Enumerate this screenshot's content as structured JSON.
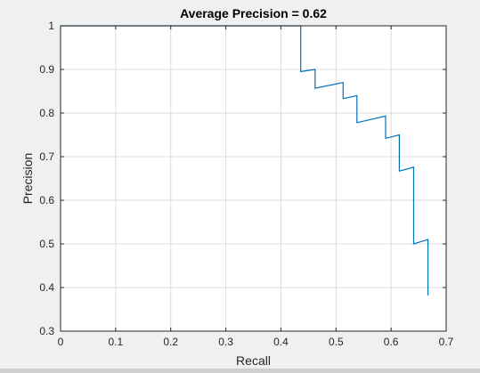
{
  "chart_data": {
    "type": "line",
    "title": "Average Precision = 0.62",
    "xlabel": "Recall",
    "ylabel": "Precision",
    "xlim": [
      0,
      0.7
    ],
    "ylim": [
      0.3,
      1.0
    ],
    "xticks": [
      0,
      0.1,
      0.2,
      0.3,
      0.4,
      0.5,
      0.6,
      0.7
    ],
    "xtick_labels": [
      "0",
      "0.1",
      "0.2",
      "0.3",
      "0.4",
      "0.5",
      "0.6",
      "0.7"
    ],
    "yticks": [
      0.3,
      0.4,
      0.5,
      0.6,
      0.7,
      0.8,
      0.9,
      1.0
    ],
    "ytick_labels": [
      "0.3",
      "0.4",
      "0.5",
      "0.6",
      "0.7",
      "0.8",
      "0.9",
      "1"
    ],
    "grid": true,
    "line_color": "#0072bd",
    "series": [
      {
        "x": [
          0,
          0.436,
          0.436,
          0.462,
          0.462,
          0.513,
          0.513,
          0.538,
          0.538,
          0.59,
          0.59,
          0.615,
          0.615,
          0.641,
          0.641,
          0.667,
          0.667
        ],
        "y": [
          1.0,
          1.0,
          0.895,
          0.9,
          0.857,
          0.87,
          0.833,
          0.84,
          0.778,
          0.793,
          0.742,
          0.75,
          0.667,
          0.676,
          0.5,
          0.51,
          0.382
        ]
      }
    ]
  }
}
